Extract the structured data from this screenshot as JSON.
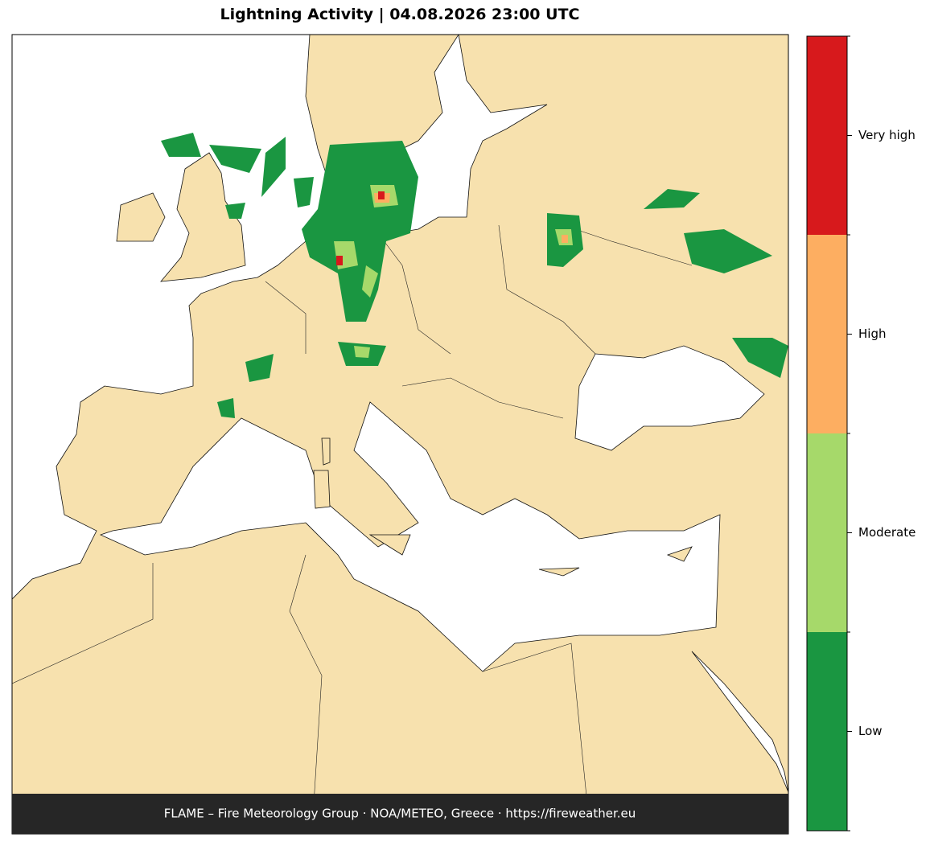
{
  "title": "Lightning Activity  |  04.08.2026 23:00 UTC",
  "legend": {
    "levels": [
      {
        "label": "Very high",
        "color": "#d7191c"
      },
      {
        "label": "High",
        "color": "#fdae61"
      },
      {
        "label": "Moderate",
        "color": "#a6d96a"
      },
      {
        "label": "Low",
        "color": "#1a9641"
      }
    ]
  },
  "footer": "FLAME – Fire Meteorology Group · NOA/METEO, Greece · https://fireweather.eu"
}
